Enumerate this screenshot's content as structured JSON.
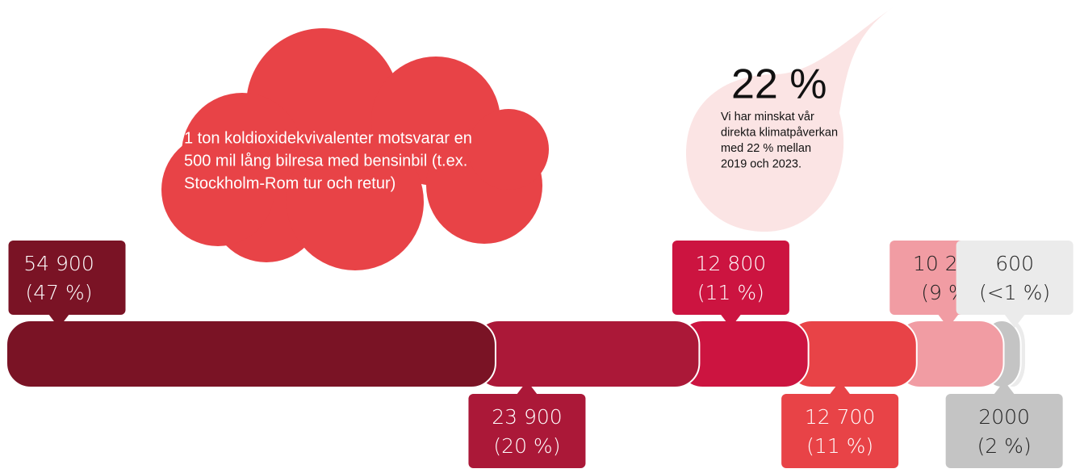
{
  "chart_data": {
    "type": "segmented_bar",
    "values": [
      54900,
      23900,
      12800,
      12700,
      10200,
      2000,
      600
    ],
    "value_labels": [
      "54 900",
      "23 900",
      "12 800",
      "12 700",
      "10 200",
      "2000",
      "600"
    ],
    "share_labels": [
      "(47 %)",
      "(20 %)",
      "(11 %)",
      "(11 %)",
      "(9 %)",
      "(2 %)",
      "(<1 %)"
    ],
    "colors": [
      "#7a1325",
      "#ab1838",
      "#cc1440",
      "#e84347",
      "#f19ca3",
      "#c4c4c4",
      "#ebebeb"
    ],
    "cloud_text": [
      "1 ton koldioxidekvivalenter motsvarar en",
      "500 mil lång bilresa med bensinbil (t.ex.",
      "Stockholm-Rom tur och retur)"
    ],
    "drop_title": "22 %",
    "drop_text": [
      "Vi har minskat vår",
      "direkta klimatpåverkan",
      "med 22 % mellan",
      "2019 och 2023."
    ]
  }
}
